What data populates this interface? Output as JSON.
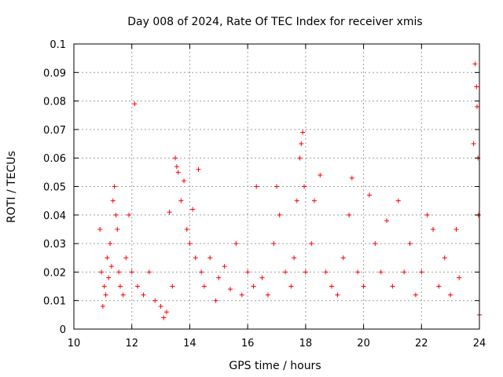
{
  "chart_data": {
    "type": "scatter",
    "title": "Day 008 of 2024, Rate Of TEC Index for receiver xmis",
    "xlabel": "GPS time / hours",
    "ylabel": "ROTI / TECUs",
    "xlim": [
      10,
      24
    ],
    "ylim": [
      0,
      0.1
    ],
    "x_ticks": [
      10,
      12,
      14,
      16,
      18,
      20,
      22,
      24
    ],
    "y_ticks": [
      0,
      0.01,
      0.02,
      0.03,
      0.04,
      0.05,
      0.06,
      0.07,
      0.08,
      0.09,
      0.1
    ],
    "x_tick_labels": [
      "10",
      "12",
      "14",
      "16",
      "18",
      "20",
      "22",
      "24"
    ],
    "y_tick_labels": [
      "0",
      "0.01",
      "0.02",
      "0.03",
      "0.04",
      "0.05",
      "0.06",
      "0.07",
      "0.08",
      "0.09",
      "0.1"
    ],
    "grid": true,
    "marker": "+",
    "series_color": "#ff0000",
    "series": [
      {
        "points": [
          [
            10.9,
            0.035
          ],
          [
            10.95,
            0.02
          ],
          [
            11.0,
            0.008
          ],
          [
            11.05,
            0.015
          ],
          [
            11.1,
            0.012
          ],
          [
            11.15,
            0.025
          ],
          [
            11.2,
            0.018
          ],
          [
            11.25,
            0.03
          ],
          [
            11.3,
            0.022
          ],
          [
            11.35,
            0.045
          ],
          [
            11.4,
            0.05
          ],
          [
            11.45,
            0.04
          ],
          [
            11.5,
            0.035
          ],
          [
            11.55,
            0.02
          ],
          [
            11.6,
            0.015
          ],
          [
            11.7,
            0.012
          ],
          [
            11.8,
            0.025
          ],
          [
            11.9,
            0.04
          ],
          [
            12.0,
            0.02
          ],
          [
            12.1,
            0.079
          ],
          [
            12.2,
            0.015
          ],
          [
            12.4,
            0.012
          ],
          [
            12.6,
            0.02
          ],
          [
            12.8,
            0.01
          ],
          [
            13.0,
            0.008
          ],
          [
            13.1,
            0.004
          ],
          [
            13.2,
            0.006
          ],
          [
            13.3,
            0.041
          ],
          [
            13.4,
            0.015
          ],
          [
            13.5,
            0.06
          ],
          [
            13.55,
            0.057
          ],
          [
            13.6,
            0.055
          ],
          [
            13.7,
            0.045
          ],
          [
            13.8,
            0.052
          ],
          [
            13.9,
            0.035
          ],
          [
            14.0,
            0.03
          ],
          [
            14.1,
            0.042
          ],
          [
            14.2,
            0.025
          ],
          [
            14.3,
            0.056
          ],
          [
            14.4,
            0.02
          ],
          [
            14.5,
            0.015
          ],
          [
            14.7,
            0.025
          ],
          [
            14.9,
            0.01
          ],
          [
            15.0,
            0.018
          ],
          [
            15.2,
            0.022
          ],
          [
            15.4,
            0.014
          ],
          [
            15.6,
            0.03
          ],
          [
            15.8,
            0.012
          ],
          [
            16.0,
            0.02
          ],
          [
            16.2,
            0.015
          ],
          [
            16.3,
            0.05
          ],
          [
            16.5,
            0.018
          ],
          [
            16.7,
            0.012
          ],
          [
            16.9,
            0.03
          ],
          [
            17.0,
            0.05
          ],
          [
            17.1,
            0.04
          ],
          [
            17.3,
            0.02
          ],
          [
            17.5,
            0.015
          ],
          [
            17.6,
            0.025
          ],
          [
            17.7,
            0.045
          ],
          [
            17.8,
            0.06
          ],
          [
            17.85,
            0.065
          ],
          [
            17.9,
            0.069
          ],
          [
            17.95,
            0.05
          ],
          [
            18.0,
            0.02
          ],
          [
            18.2,
            0.03
          ],
          [
            18.3,
            0.045
          ],
          [
            18.5,
            0.054
          ],
          [
            18.7,
            0.02
          ],
          [
            18.9,
            0.015
          ],
          [
            19.1,
            0.012
          ],
          [
            19.3,
            0.025
          ],
          [
            19.5,
            0.04
          ],
          [
            19.6,
            0.053
          ],
          [
            19.8,
            0.02
          ],
          [
            20.0,
            0.015
          ],
          [
            20.2,
            0.047
          ],
          [
            20.4,
            0.03
          ],
          [
            20.6,
            0.02
          ],
          [
            20.8,
            0.038
          ],
          [
            21.0,
            0.015
          ],
          [
            21.2,
            0.045
          ],
          [
            21.4,
            0.02
          ],
          [
            21.6,
            0.03
          ],
          [
            21.8,
            0.012
          ],
          [
            22.0,
            0.02
          ],
          [
            22.2,
            0.04
          ],
          [
            22.4,
            0.035
          ],
          [
            22.6,
            0.015
          ],
          [
            22.8,
            0.025
          ],
          [
            23.0,
            0.012
          ],
          [
            23.2,
            0.035
          ],
          [
            23.3,
            0.018
          ],
          [
            23.8,
            0.065
          ],
          [
            23.85,
            0.093
          ],
          [
            23.9,
            0.085
          ],
          [
            23.92,
            0.078
          ],
          [
            23.95,
            0.06
          ],
          [
            23.97,
            0.04
          ],
          [
            24.0,
            0.005
          ]
        ]
      }
    ]
  }
}
